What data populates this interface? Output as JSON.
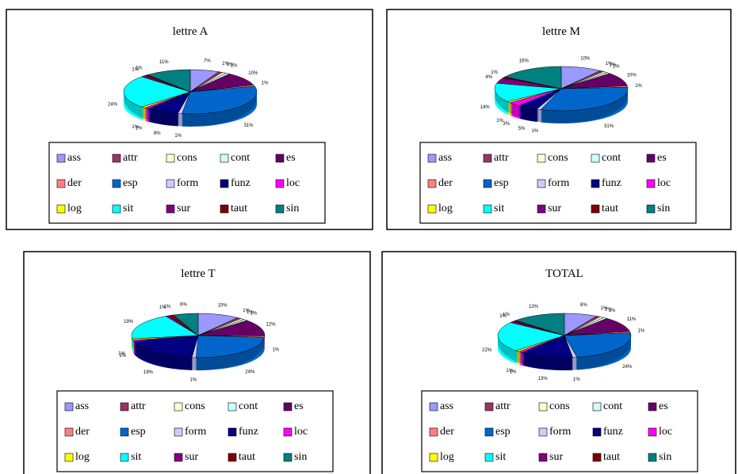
{
  "chart_data": [
    {
      "type": "pie3d",
      "title": "lettre A",
      "categories": [
        "ass",
        "attr",
        "cons",
        "cont",
        "es",
        "der",
        "esp",
        "form",
        "funz",
        "loc",
        "log",
        "sit",
        "sur",
        "taut",
        "sin"
      ],
      "colors": [
        "#9999ff",
        "#993366",
        "#ffffcc",
        "#ccffff",
        "#660066",
        "#ff8080",
        "#0066cc",
        "#ccccff",
        "#000080",
        "#ff00ff",
        "#ffff00",
        "#00ffff",
        "#800080",
        "#800000",
        "#008080"
      ],
      "values": [
        7,
        1,
        1,
        1,
        10,
        1,
        31,
        1,
        8,
        1,
        1,
        24,
        1,
        1,
        11
      ],
      "value_labels": [
        "7%",
        "1%",
        "1%",
        "1%",
        "10%",
        "1%",
        "31%",
        "1%",
        "8%",
        "1%",
        "1%",
        "24%",
        "1%",
        "1%",
        "11%"
      ]
    },
    {
      "type": "pie3d",
      "title": "lettre M",
      "categories": [
        "ass",
        "attr",
        "cons",
        "cont",
        "es",
        "der",
        "esp",
        "form",
        "funz",
        "loc",
        "log",
        "sit",
        "sur",
        "taut",
        "sin"
      ],
      "colors": [
        "#9999ff",
        "#993366",
        "#ffffcc",
        "#ccffff",
        "#660066",
        "#ff8080",
        "#0066cc",
        "#ccccff",
        "#000080",
        "#ff00ff",
        "#ffff00",
        "#00ffff",
        "#800080",
        "#800000",
        "#008080"
      ],
      "values": [
        10,
        1,
        1,
        1,
        10,
        1,
        31,
        1,
        5,
        3,
        1,
        14,
        4,
        1,
        16
      ],
      "value_labels": [
        "10%",
        "1%",
        "1%",
        "1%",
        "10%",
        "1%",
        "31%",
        "1%",
        "5%",
        "3%",
        "1%",
        "14%",
        "4%",
        "1%",
        "16%"
      ]
    },
    {
      "type": "pie3d",
      "title": "lettre T",
      "categories": [
        "ass",
        "attr",
        "cons",
        "cont",
        "es",
        "der",
        "esp",
        "form",
        "funz",
        "loc",
        "log",
        "sit",
        "sur",
        "taut",
        "sin"
      ],
      "colors": [
        "#9999ff",
        "#993366",
        "#ffffcc",
        "#ccffff",
        "#660066",
        "#ff8080",
        "#0066cc",
        "#ccccff",
        "#000080",
        "#ff00ff",
        "#ffff00",
        "#00ffff",
        "#800080",
        "#800000",
        "#008080"
      ],
      "values": [
        10,
        1,
        1,
        1,
        12,
        1,
        24,
        1,
        19,
        1,
        1,
        19,
        1,
        1,
        6
      ],
      "value_labels": [
        "10%",
        "1%",
        "1%",
        "1%",
        "12%",
        "1%",
        "24%",
        "1%",
        "19%",
        "1%",
        "1%",
        "19%",
        "1%",
        "1%",
        "6%"
      ]
    },
    {
      "type": "pie3d",
      "title": "TOTAL",
      "categories": [
        "ass",
        "attr",
        "cons",
        "cont",
        "es",
        "der",
        "esp",
        "form",
        "funz",
        "loc",
        "log",
        "sit",
        "sur",
        "taut",
        "sin"
      ],
      "colors": [
        "#9999ff",
        "#993366",
        "#ffffcc",
        "#ccffff",
        "#660066",
        "#ff8080",
        "#0066cc",
        "#ccccff",
        "#000080",
        "#ff00ff",
        "#ffff00",
        "#00ffff",
        "#800080",
        "#800000",
        "#008080"
      ],
      "values": [
        8,
        1,
        1,
        1,
        11,
        1,
        24,
        1,
        13,
        1,
        1,
        22,
        1,
        1,
        13
      ],
      "value_labels": [
        "8%",
        "1%",
        "1%",
        "1%",
        "11%",
        "1%",
        "24%",
        "1%",
        "13%",
        "1%",
        "1%",
        "22%",
        "1%",
        "1%",
        "13%"
      ]
    }
  ]
}
